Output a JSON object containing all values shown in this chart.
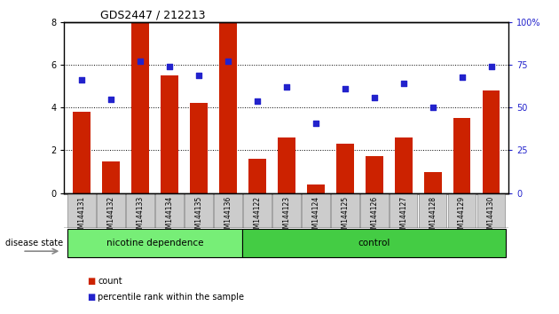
{
  "title": "GDS2447 / 212213",
  "samples": [
    "GSM144131",
    "GSM144132",
    "GSM144133",
    "GSM144134",
    "GSM144135",
    "GSM144136",
    "GSM144122",
    "GSM144123",
    "GSM144124",
    "GSM144125",
    "GSM144126",
    "GSM144127",
    "GSM144128",
    "GSM144129",
    "GSM144130"
  ],
  "bar_values": [
    3.8,
    1.5,
    8.0,
    5.5,
    4.2,
    8.0,
    1.6,
    2.6,
    0.4,
    2.3,
    1.75,
    2.6,
    1.0,
    3.5,
    4.8
  ],
  "percentile_values": [
    66,
    55,
    77,
    74,
    69,
    77,
    54,
    62,
    41,
    61,
    56,
    64,
    50,
    68,
    74
  ],
  "bar_color": "#cc2200",
  "percentile_color": "#2222cc",
  "ylim_left": [
    0,
    8
  ],
  "ylim_right": [
    0,
    100
  ],
  "yticks_left": [
    0,
    2,
    4,
    6,
    8
  ],
  "yticks_right": [
    0,
    25,
    50,
    75,
    100
  ],
  "ytick_labels_right": [
    "0",
    "25",
    "50",
    "75",
    "100%"
  ],
  "group1_label": "nicotine dependence",
  "group2_label": "control",
  "group1_count": 6,
  "group2_count": 9,
  "disease_state_label": "disease state",
  "legend_count_label": "count",
  "legend_percentile_label": "percentile rank within the sample",
  "group_color1": "#77ee77",
  "group_color2": "#44cc44",
  "tick_label_bg": "#cccccc",
  "fig_width": 6.3,
  "fig_height": 3.54,
  "dpi": 100
}
